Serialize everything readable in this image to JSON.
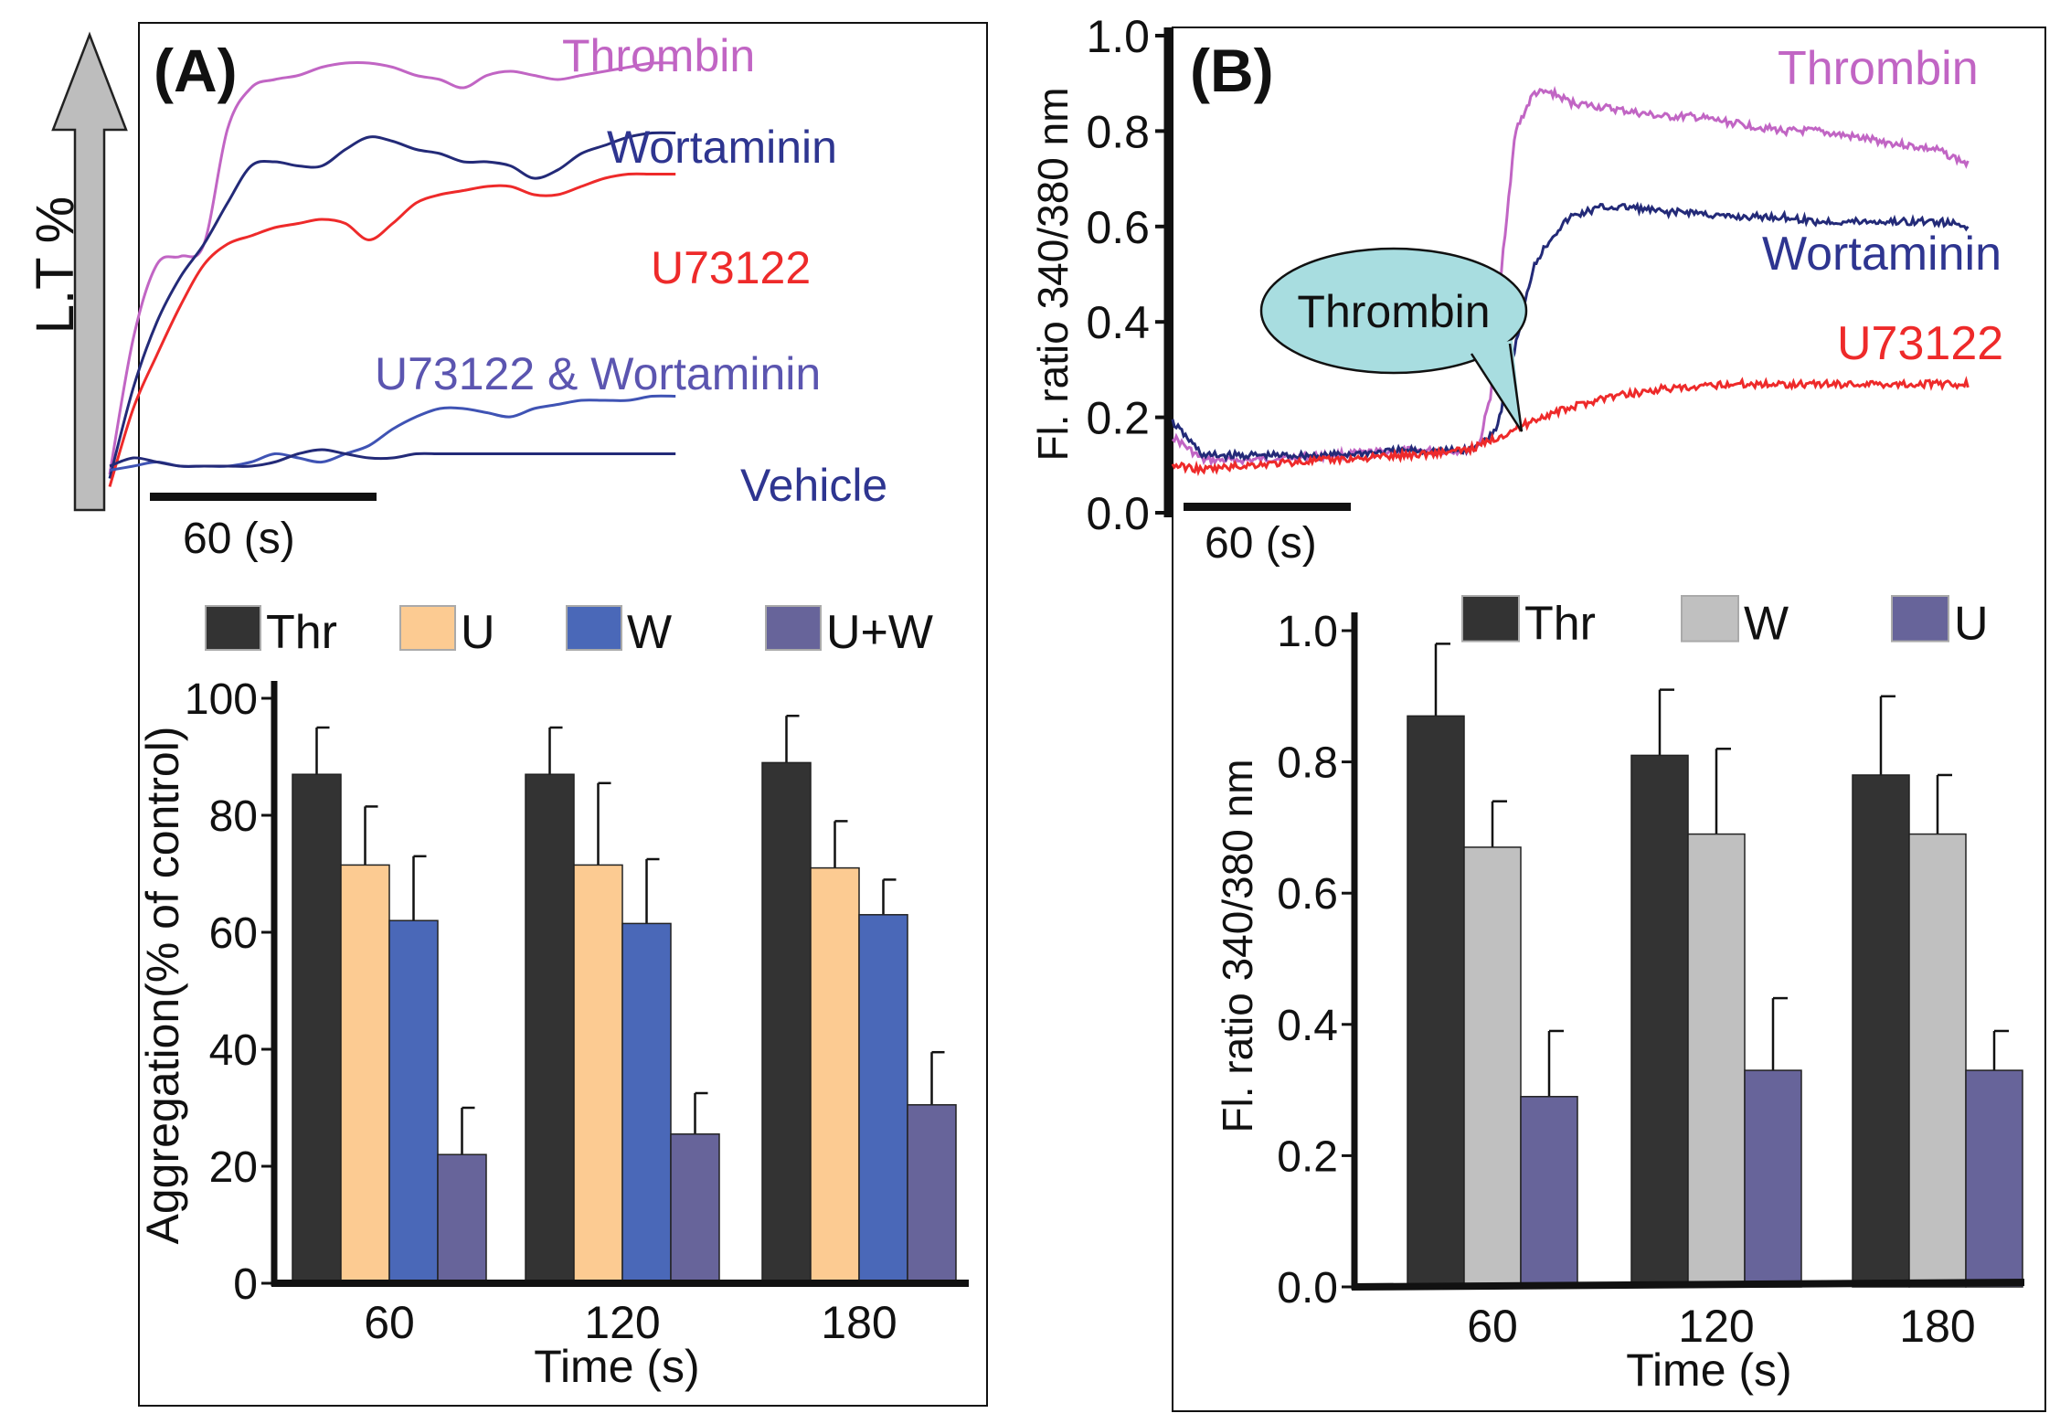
{
  "panels": {
    "a": {
      "label": "(A)",
      "lt_label": "L.T %",
      "scale_bar": "60 (s)",
      "trace_labels": {
        "thrombin": "Thrombin",
        "wortaminin": "Wortaminin",
        "u73122": "U73122",
        "u73122_wortaminin": "U73122 & Wortaminin",
        "vehicle": "Vehicle"
      }
    },
    "b": {
      "label": "(B)",
      "scale_bar": "60 (s)",
      "callout": "Thrombin",
      "trace_labels": {
        "thrombin": "Thrombin",
        "wortaminin": "Wortaminin",
        "u73122": "U73122"
      }
    }
  },
  "colors": {
    "thrombin": "#c165c4",
    "wortaminin": "#232a78",
    "u73122": "#ee2a2a",
    "u73122_wortaminin": "#3f53b4",
    "vehicle": "#232a78",
    "label_wortaminin": "#2e3590",
    "label_uw": "#5b55b0",
    "callout_fill": "#a8dde0",
    "bar_thr": "#333333",
    "bar_u_orange": "#fccb92",
    "bar_w_blue": "#4a68b8",
    "bar_uw": "#67649a",
    "bar_w_gray": "#c0c0c0",
    "bar_u_purple": "#67649a"
  },
  "chart_data": [
    {
      "id": "a-traces",
      "type": "line",
      "title": "(A)",
      "ylabel": "L.T %",
      "scale_bar": "60 (s)",
      "x_unit": "s",
      "series": [
        {
          "key": "thrombin",
          "name": "Thrombin",
          "x": [
            0,
            10,
            20,
            30,
            40,
            50,
            60,
            70,
            80,
            90,
            100,
            110,
            120,
            130,
            140,
            150,
            160,
            170,
            180,
            190,
            200,
            210,
            220,
            230,
            240
          ],
          "y": [
            4,
            37,
            55,
            57,
            60,
            88,
            98,
            100,
            101,
            103,
            104,
            104,
            103,
            101,
            100,
            98,
            101,
            102,
            101,
            100,
            101,
            102,
            103,
            104,
            104
          ]
        },
        {
          "key": "wortaminin",
          "name": "Wortaminin",
          "x": [
            0,
            10,
            20,
            30,
            40,
            50,
            60,
            70,
            80,
            90,
            100,
            110,
            120,
            130,
            140,
            150,
            160,
            170,
            180,
            190,
            200,
            210,
            220,
            230,
            240
          ],
          "y": [
            3,
            25,
            41,
            52,
            60,
            70,
            79,
            80,
            79,
            79,
            83,
            86,
            85,
            83,
            82,
            80,
            80,
            79,
            76,
            78,
            82,
            84,
            86,
            87,
            87
          ]
        },
        {
          "key": "u73122",
          "name": "U73122",
          "x": [
            0,
            10,
            20,
            30,
            40,
            50,
            60,
            70,
            80,
            90,
            100,
            110,
            120,
            130,
            140,
            150,
            160,
            170,
            180,
            190,
            200,
            210,
            220,
            230,
            240
          ],
          "y": [
            1,
            20,
            33,
            45,
            55,
            60,
            62,
            64,
            65,
            66,
            65,
            61,
            65,
            70,
            72,
            73,
            74,
            74,
            72,
            72,
            74,
            76,
            77,
            77,
            77
          ]
        },
        {
          "key": "u73122_wortaminin",
          "name": "U73122 & Wortaminin",
          "x": [
            0,
            10,
            20,
            30,
            40,
            50,
            60,
            70,
            80,
            90,
            100,
            110,
            120,
            130,
            140,
            150,
            160,
            170,
            180,
            190,
            200,
            210,
            220,
            230,
            240
          ],
          "y": [
            5,
            6,
            7,
            6,
            6,
            6,
            7,
            9,
            8,
            7,
            9,
            11,
            15,
            18,
            20,
            20,
            19,
            18,
            20,
            21,
            22,
            22,
            22,
            23,
            23
          ]
        },
        {
          "key": "vehicle",
          "name": "Vehicle",
          "x": [
            0,
            10,
            20,
            30,
            40,
            50,
            60,
            70,
            80,
            90,
            100,
            110,
            120,
            130,
            140,
            150,
            160,
            170,
            180,
            190,
            200,
            210,
            220,
            230,
            240
          ],
          "y": [
            6,
            8,
            7,
            6,
            6,
            6,
            6,
            7,
            9,
            10,
            9,
            8,
            8,
            9,
            9,
            9,
            9,
            9,
            9,
            9,
            9,
            9,
            9,
            9,
            9
          ]
        }
      ]
    },
    {
      "id": "a-bars",
      "type": "bar",
      "categories": [
        "60",
        "120",
        "180"
      ],
      "xlabel": "Time (s)",
      "ylabel": "Aggregation(% of control)",
      "ylim": [
        0,
        100
      ],
      "yticks": [
        0,
        20,
        40,
        60,
        80,
        100
      ],
      "series": [
        {
          "key": "bar_thr",
          "name": "Thr",
          "values": [
            87,
            87,
            89
          ],
          "errors": [
            8,
            8,
            8
          ]
        },
        {
          "key": "bar_u_orange",
          "name": "U",
          "values": [
            71.5,
            71.5,
            71
          ],
          "errors": [
            10,
            14,
            8
          ]
        },
        {
          "key": "bar_w_blue",
          "name": "W",
          "values": [
            62,
            61.5,
            63
          ],
          "errors": [
            11,
            11,
            6
          ]
        },
        {
          "key": "bar_uw",
          "name": "U+W",
          "values": [
            22,
            25.5,
            30.5
          ],
          "errors": [
            8,
            7,
            9
          ]
        }
      ]
    },
    {
      "id": "b-traces",
      "type": "line",
      "title": "(B)",
      "ylabel": "Fl. ratio 340/380 nm",
      "ylim": [
        0,
        1
      ],
      "yticks": [
        0.0,
        0.2,
        0.4,
        0.6,
        0.8,
        1.0
      ],
      "scale_bar": "60 (s)",
      "x_unit": "s",
      "annotations": [
        {
          "text": "Thrombin",
          "x": 100
        }
      ],
      "series": [
        {
          "key": "thrombin",
          "name": "Thrombin",
          "x": [
            0,
            10,
            25,
            50,
            75,
            95,
            100,
            104,
            108,
            112,
            118,
            124,
            130,
            140,
            150,
            160,
            170,
            180,
            190,
            200,
            210,
            220,
            230,
            240,
            250,
            260
          ],
          "y": [
            0.16,
            0.11,
            0.11,
            0.12,
            0.13,
            0.13,
            0.14,
            0.25,
            0.55,
            0.8,
            0.88,
            0.88,
            0.86,
            0.85,
            0.84,
            0.83,
            0.83,
            0.82,
            0.81,
            0.8,
            0.8,
            0.79,
            0.78,
            0.77,
            0.76,
            0.73
          ]
        },
        {
          "key": "wortaminin",
          "name": "Wortaminin",
          "x": [
            0,
            10,
            25,
            50,
            75,
            95,
            100,
            106,
            112,
            118,
            124,
            130,
            140,
            150,
            160,
            170,
            180,
            190,
            200,
            210,
            220,
            230,
            240,
            250,
            260
          ],
          "y": [
            0.19,
            0.12,
            0.12,
            0.12,
            0.13,
            0.13,
            0.14,
            0.18,
            0.35,
            0.52,
            0.58,
            0.62,
            0.64,
            0.64,
            0.63,
            0.63,
            0.62,
            0.62,
            0.62,
            0.61,
            0.61,
            0.61,
            0.61,
            0.61,
            0.6
          ]
        },
        {
          "key": "u73122",
          "name": "U73122",
          "x": [
            0,
            10,
            25,
            50,
            75,
            95,
            100,
            110,
            120,
            130,
            140,
            150,
            160,
            170,
            180,
            190,
            200,
            220,
            240,
            260
          ],
          "y": [
            0.1,
            0.09,
            0.1,
            0.11,
            0.12,
            0.13,
            0.14,
            0.17,
            0.2,
            0.22,
            0.24,
            0.25,
            0.26,
            0.26,
            0.27,
            0.27,
            0.27,
            0.27,
            0.27,
            0.27
          ]
        }
      ]
    },
    {
      "id": "b-bars",
      "type": "bar",
      "categories": [
        "60",
        "120",
        "180"
      ],
      "xlabel": "Time (s)",
      "ylabel": "Fl. ratio 340/380 nm",
      "ylim": [
        0,
        1
      ],
      "yticks": [
        0.0,
        0.2,
        0.4,
        0.6,
        0.8,
        1.0
      ],
      "series": [
        {
          "key": "bar_thr",
          "name": "Thr",
          "values": [
            0.87,
            0.81,
            0.78
          ],
          "errors": [
            0.11,
            0.1,
            0.12
          ]
        },
        {
          "key": "bar_w_gray",
          "name": "W",
          "values": [
            0.67,
            0.69,
            0.69
          ],
          "errors": [
            0.07,
            0.13,
            0.09
          ]
        },
        {
          "key": "bar_u_purple",
          "name": "U",
          "values": [
            0.29,
            0.33,
            0.33
          ],
          "errors": [
            0.1,
            0.11,
            0.06
          ]
        }
      ]
    }
  ]
}
